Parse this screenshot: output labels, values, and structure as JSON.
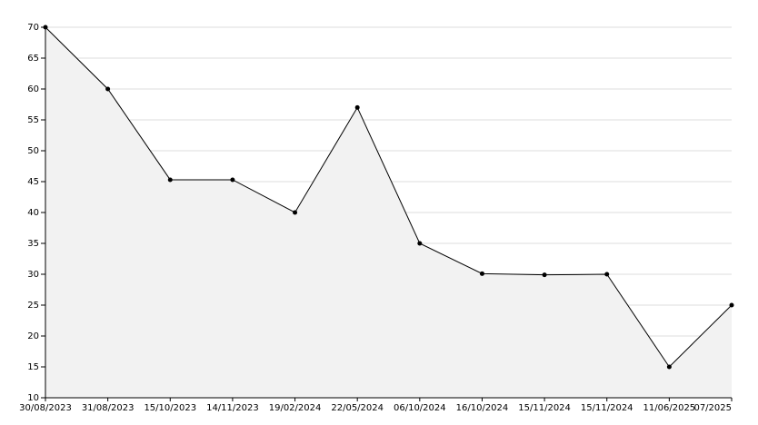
{
  "chart_data": {
    "type": "area",
    "categories": [
      "30/08/2023",
      "31/08/2023",
      "15/10/2023",
      "14/11/2023",
      "19/02/2024",
      "22/05/2024",
      "06/10/2024",
      "16/10/2024",
      "15/11/2024",
      "15/11/2024",
      "11/06/2025",
      "07/2025"
    ],
    "values": [
      70,
      60,
      45.3,
      45.3,
      40,
      57,
      35,
      30.1,
      29.9,
      30,
      15,
      25
    ],
    "color": "#000000",
    "fill": "#f2f2f2",
    "ylim": [
      10,
      70
    ],
    "yticks": [
      10,
      15,
      20,
      25,
      30,
      35,
      40,
      45,
      50,
      55,
      60,
      65,
      70
    ],
    "grid": true
  }
}
